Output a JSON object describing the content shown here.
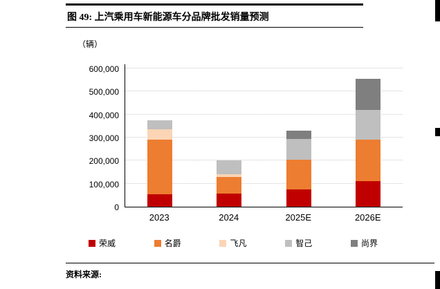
{
  "figure": {
    "number_title": "图 49: 上汽乘用车新能源车分品牌批发销量预测",
    "source_label": "资料来源:"
  },
  "chart_data": {
    "type": "bar",
    "stacked": true,
    "title": "上汽乘用车新能源车分品牌批发销量预测",
    "unit_label": "（辆）",
    "categories": [
      "2023",
      "2024",
      "2025E",
      "2026E"
    ],
    "series": [
      {
        "name": "荣威",
        "color": "#C00000",
        "values": [
          55000,
          58000,
          75000,
          110000
        ]
      },
      {
        "name": "名爵",
        "color": "#ED7D31",
        "values": [
          235000,
          72000,
          130000,
          180000
        ]
      },
      {
        "name": "飞凡",
        "color": "#FBD5B5",
        "values": [
          45000,
          10000,
          0,
          0
        ]
      },
      {
        "name": "智己",
        "color": "#BFBFBF",
        "values": [
          40000,
          60000,
          90000,
          130000
        ]
      },
      {
        "name": "尚界",
        "color": "#7F7F7F",
        "values": [
          0,
          0,
          35000,
          135000
        ]
      }
    ],
    "totals": [
      375000,
      200000,
      330000,
      555000
    ],
    "ylim": [
      0,
      600000
    ],
    "ytick_step": 100000,
    "ytick_labels": [
      "0",
      "100,000",
      "200,000",
      "300,000",
      "400,000",
      "500,000",
      "600,000"
    ],
    "grid": true,
    "grid_color": "#C9C9C9",
    "axis_color": "#000000",
    "legend_position": "bottom"
  }
}
